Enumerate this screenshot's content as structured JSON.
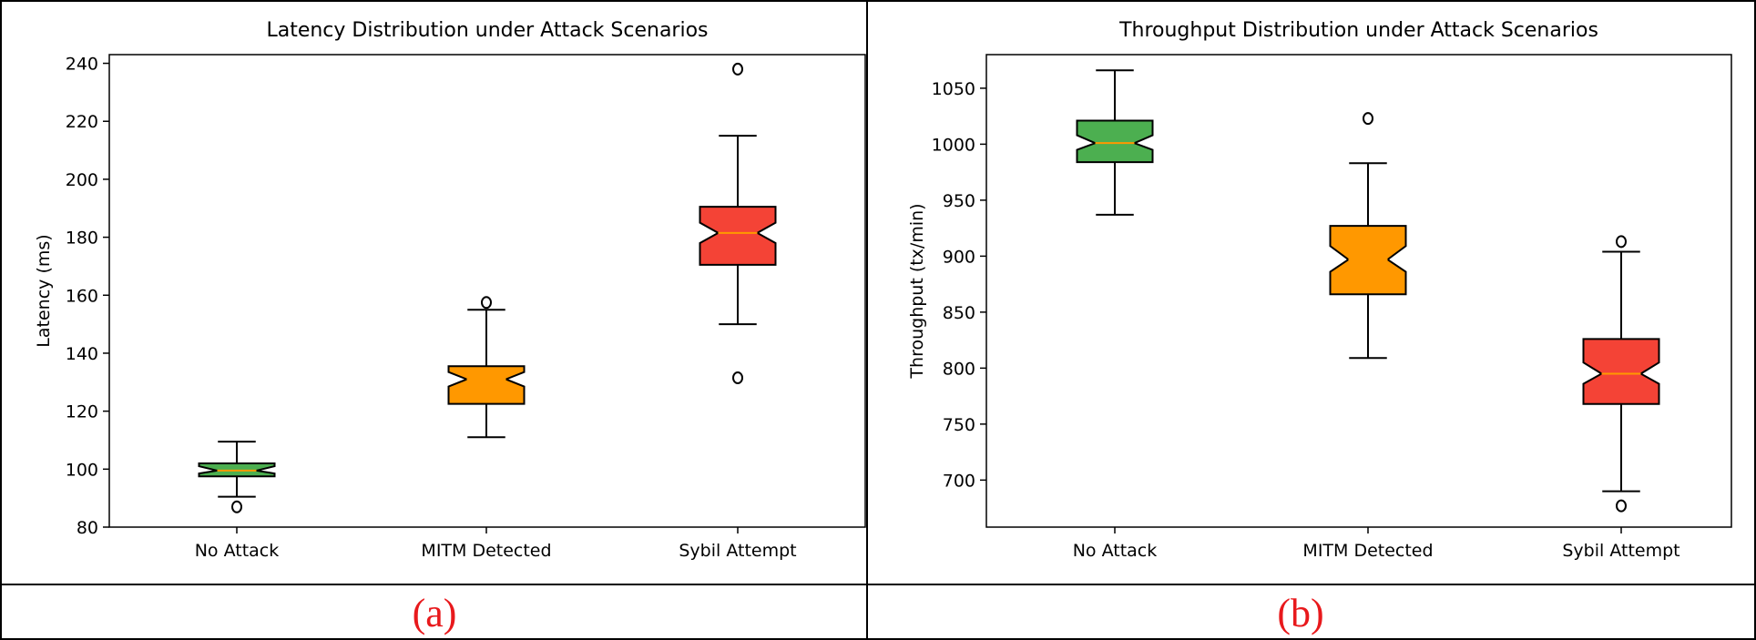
{
  "figure": {
    "captions": [
      "(a)",
      "(b)"
    ]
  },
  "chart_data": [
    {
      "type": "box",
      "title": "Latency Distribution under Attack Scenarios",
      "xlabel": "",
      "ylabel": "Latency (ms)",
      "ylim": [
        80,
        243
      ],
      "yticks": [
        80,
        100,
        120,
        140,
        160,
        180,
        200,
        220,
        240
      ],
      "grid": false,
      "notched": true,
      "categories": [
        "No Attack",
        "MITM Detected",
        "Sybil Attempt"
      ],
      "colors": [
        "#4caf50",
        "#ff9800",
        "#f44336"
      ],
      "median_color": "#ff9800",
      "boxes": [
        {
          "whisker_low": 90.5,
          "q1": 97.5,
          "median": 99.5,
          "q3": 102,
          "whisker_high": 109.5,
          "notch_low": 98.5,
          "notch_high": 101,
          "outliers": [
            87
          ]
        },
        {
          "whisker_low": 111,
          "q1": 122.5,
          "median": 131,
          "q3": 135.5,
          "whisker_high": 155,
          "notch_low": 128.5,
          "notch_high": 133.5,
          "outliers": [
            157.5
          ]
        },
        {
          "whisker_low": 150,
          "q1": 170.5,
          "median": 181.5,
          "q3": 190.5,
          "whisker_high": 215,
          "notch_low": 178,
          "notch_high": 185,
          "outliers": [
            131.5,
            238
          ]
        }
      ]
    },
    {
      "type": "box",
      "title": "Throughput Distribution under Attack Scenarios",
      "xlabel": "",
      "ylabel": "Throughput (tx/min)",
      "ylim": [
        658,
        1080
      ],
      "yticks": [
        700,
        750,
        800,
        850,
        900,
        950,
        1000,
        1050
      ],
      "grid": false,
      "notched": true,
      "categories": [
        "No Attack",
        "MITM Detected",
        "Sybil Attempt"
      ],
      "colors": [
        "#4caf50",
        "#ff9800",
        "#f44336"
      ],
      "median_color": "#ff9800",
      "boxes": [
        {
          "whisker_low": 937,
          "q1": 984,
          "median": 1001,
          "q3": 1021,
          "whisker_high": 1066,
          "notch_low": 995,
          "notch_high": 1008,
          "outliers": []
        },
        {
          "whisker_low": 809,
          "q1": 866,
          "median": 897,
          "q3": 927,
          "whisker_high": 983,
          "notch_low": 886,
          "notch_high": 909,
          "outliers": [
            1023
          ]
        },
        {
          "whisker_low": 690,
          "q1": 768,
          "median": 795,
          "q3": 826,
          "whisker_high": 904,
          "notch_low": 786,
          "notch_high": 805,
          "outliers": [
            913,
            677
          ]
        }
      ]
    }
  ]
}
